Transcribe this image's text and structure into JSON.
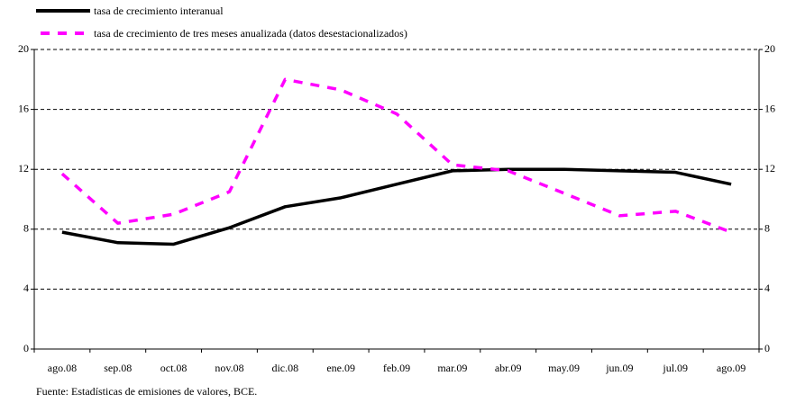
{
  "chart_data": {
    "type": "line",
    "categories": [
      "ago.08",
      "sep.08",
      "oct.08",
      "nov.08",
      "dic.08",
      "ene.09",
      "feb.09",
      "mar.09",
      "abr.09",
      "may.09",
      "jun.09",
      "jul.09",
      "ago.09"
    ],
    "series": [
      {
        "name": "tasa de crecimiento interanual",
        "color": "#000000",
        "style": "solid",
        "values": [
          7.8,
          7.1,
          7.0,
          8.1,
          9.5,
          10.1,
          11.0,
          11.9,
          12.0,
          12.0,
          11.9,
          11.8,
          11.0
        ]
      },
      {
        "name": "tasa de crecimiento de tres meses anualizada (datos desestacionalizados)",
        "color": "#ff00ff",
        "style": "dashed",
        "values": [
          11.7,
          8.4,
          9.0,
          10.5,
          18.0,
          17.3,
          15.7,
          12.3,
          11.9,
          10.4,
          8.9,
          9.2,
          7.8
        ]
      }
    ],
    "ylim": [
      0,
      20
    ],
    "yticks": [
      0,
      4,
      8,
      12,
      16,
      20
    ],
    "y2lim": [
      0,
      20
    ],
    "y2ticks": [
      0,
      4,
      8,
      12,
      16,
      20
    ],
    "grid": true,
    "source": "Fuente: Estadísticas de emisiones de valores, BCE."
  }
}
